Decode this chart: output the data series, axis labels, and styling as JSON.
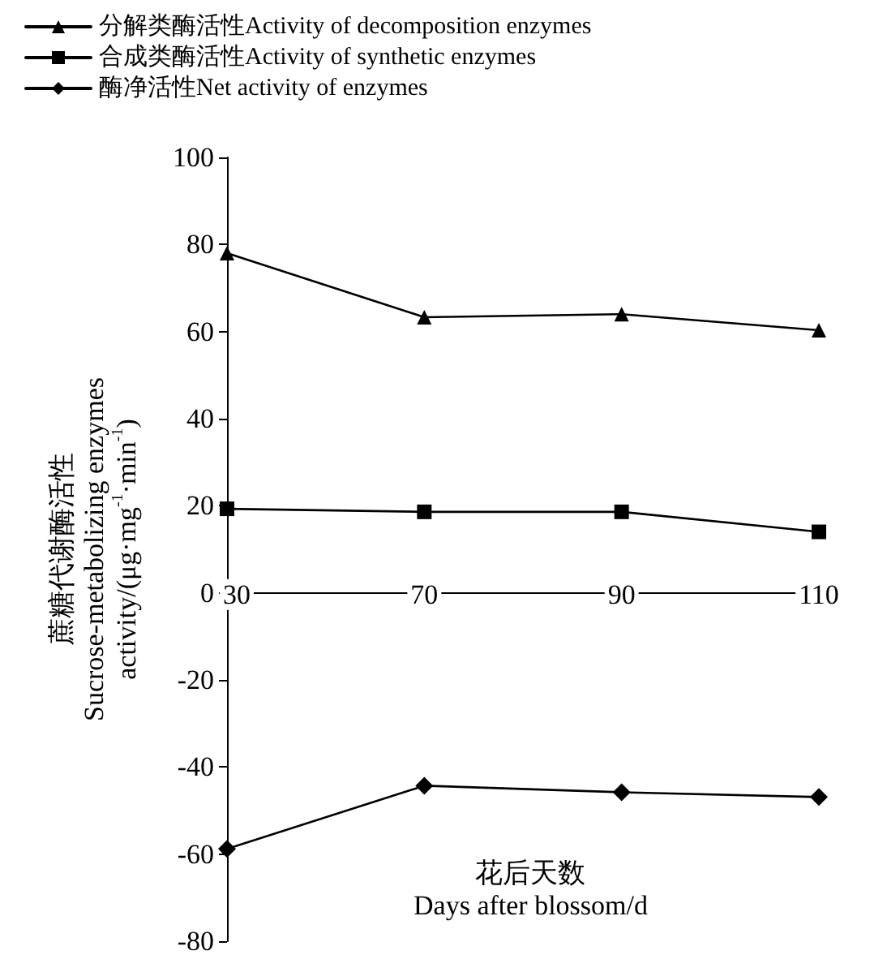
{
  "chart_data": {
    "type": "line",
    "categories": [
      "30",
      "70",
      "90",
      "110"
    ],
    "series": [
      {
        "name": "分解类酶活性Activity of decomposition enzymes",
        "color": "#000000",
        "marker": "triangle",
        "values": [
          78,
          63.3,
          64,
          60.3
        ]
      },
      {
        "name": "合成类酶活性Activity of synthetic enzymes",
        "color": "#000000",
        "marker": "square",
        "values": [
          19.3,
          18.6,
          18.6,
          14
        ]
      },
      {
        "name": "酶净活性Net activity of enzymes",
        "color": "#000000",
        "marker": "diamond",
        "values": [
          -58.8,
          -44.3,
          -45.8,
          -46.9
        ]
      }
    ],
    "xlabel": "花后天数\nDays after blossom/d",
    "ylabel": "蔗糖代谢酶活性\nSucrose-metabolizing enzymes\nactivity/(μg·mg$^{-1}$·min$^{-1}$)",
    "ylim": [
      -80,
      100
    ],
    "yticks": [
      -80,
      -60,
      -40,
      -20,
      0,
      20,
      40,
      60,
      80,
      100
    ],
    "grid": false,
    "legend": "top left",
    "line_style": "solid"
  }
}
